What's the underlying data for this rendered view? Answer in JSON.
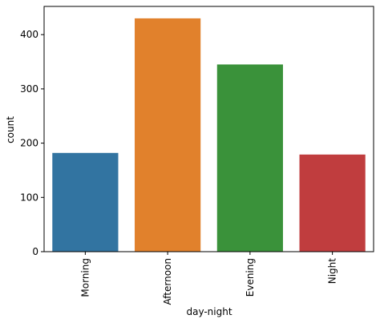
{
  "chart_data": {
    "type": "bar",
    "title": "",
    "xlabel": "day-night",
    "ylabel": "count",
    "categories": [
      "Morning",
      "Afternoon",
      "Evening",
      "Night"
    ],
    "values": [
      182,
      430,
      345,
      179
    ],
    "colors": [
      "#3274a1",
      "#e1812c",
      "#3a923a",
      "#c03d3e"
    ],
    "ylim": [
      0,
      452
    ],
    "yticks": [
      0,
      100,
      200,
      300,
      400
    ],
    "grid": false,
    "legend": "none",
    "x_tick_rotation": "vertical"
  }
}
